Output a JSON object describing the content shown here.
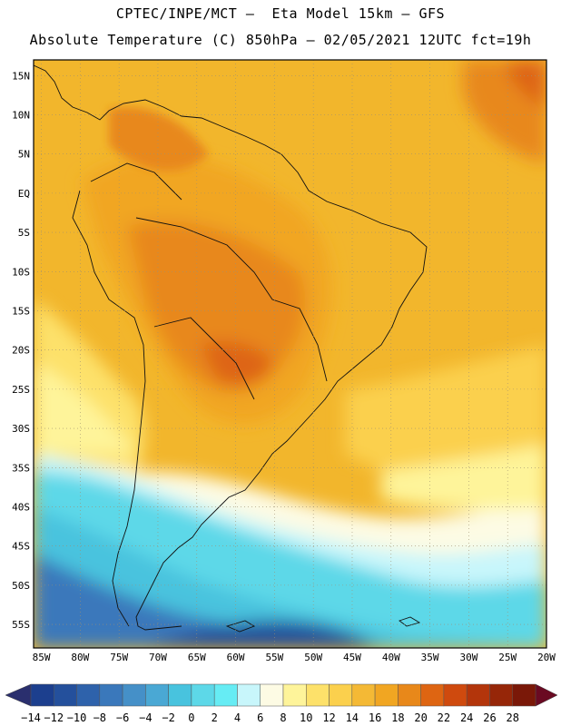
{
  "header": {
    "line1": "CPTEC/INPE/MCT –  Eta Model 15km – GFS",
    "line2": "Absolute Temperature (C) 850hPa – 02/05/2021 12UTC fct=19h"
  },
  "map": {
    "lat_labels": [
      "15N",
      "10N",
      "5N",
      "EQ",
      "5S",
      "10S",
      "15S",
      "20S",
      "25S",
      "30S",
      "35S",
      "40S",
      "45S",
      "50S",
      "55S"
    ],
    "lon_labels": [
      "85W",
      "80W",
      "75W",
      "70W",
      "65W",
      "60W",
      "55W",
      "50W",
      "45W",
      "40W",
      "35W",
      "30W",
      "25W",
      "20W"
    ],
    "lat_range": [
      17,
      -58
    ],
    "lon_range": [
      -86,
      -20
    ],
    "field": "temperature_850hPa",
    "units": "C"
  },
  "colorbar": {
    "labels": [
      "-14",
      "-12",
      "-10",
      "-8",
      "-6",
      "-4",
      "-2",
      "0",
      "2",
      "4",
      "6",
      "8",
      "10",
      "12",
      "14",
      "16",
      "18",
      "20",
      "22",
      "24",
      "26",
      "28"
    ],
    "colors": [
      "#1c3f8e",
      "#24509c",
      "#2e62ab",
      "#3a78bb",
      "#4590c8",
      "#4aa8d4",
      "#48c3de",
      "#5dd8e8",
      "#66ecf4",
      "#c8f6fb",
      "#fdfbe4",
      "#fef49a",
      "#fde16a",
      "#fbd04d",
      "#f4b935",
      "#f1a622",
      "#e8881a",
      "#de6512",
      "#cf4a0e",
      "#b3350b",
      "#962608",
      "#7a1808"
    ],
    "arrow_low": "#2a2f6e",
    "arrow_high": "#6a0a22"
  }
}
